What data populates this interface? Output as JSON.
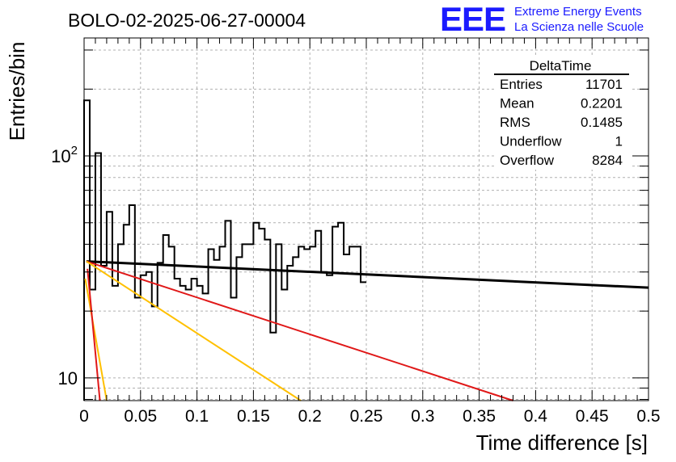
{
  "chart_data": {
    "type": "histogram",
    "title": "BOLO-02-2025-06-27-00004",
    "xlabel": "Time difference [s]",
    "ylabel": "Entries/bin",
    "xlim": [
      0,
      0.5
    ],
    "ylim": [
      7.9,
      340
    ],
    "y_scale": "log",
    "grid": true,
    "x_ticks": [
      "0",
      "0.05",
      "0.1",
      "0.15",
      "0.2",
      "0.25",
      "0.3",
      "0.35",
      "0.4",
      "0.45",
      "0.5"
    ],
    "y_ticks": [
      "10",
      "10^2"
    ],
    "bin_width": 0.005,
    "bin_counts": [
      178,
      25,
      103,
      32,
      56,
      26,
      40,
      49,
      60,
      23,
      29,
      30,
      21,
      33,
      44,
      39,
      28,
      26,
      25,
      28,
      26,
      24,
      38,
      34,
      39,
      51,
      23,
      35,
      40,
      40,
      50,
      47,
      42,
      16,
      40,
      25,
      32,
      35,
      39,
      38,
      39,
      46,
      30,
      29,
      48,
      50,
      36,
      39,
      39,
      27
    ],
    "fit_lines": [
      {
        "color": "#000000",
        "x": [
          0.002,
          0.5
        ],
        "y": [
          33.5,
          25.5
        ]
      },
      {
        "color": "#e01818",
        "x": [
          0.002,
          0.38
        ],
        "y": [
          33.5,
          7.9
        ]
      },
      {
        "color": "#ffc000",
        "x": [
          0.002,
          0.192
        ],
        "y": [
          33.5,
          7.9
        ]
      },
      {
        "color": "#ffc000",
        "x": [
          0.001,
          0.02
        ],
        "y": [
          28,
          7.9
        ]
      },
      {
        "color": "#e01818",
        "x": [
          0.003,
          0.014
        ],
        "y": [
          31,
          7.9
        ]
      }
    ],
    "stats_box": {
      "title": "DeltaTime",
      "rows": [
        {
          "label": "Entries",
          "value": "11701"
        },
        {
          "label": "Mean",
          "value": "0.2201"
        },
        {
          "label": "RMS",
          "value": "0.1485"
        },
        {
          "label": "Underflow",
          "value": "1"
        },
        {
          "label": "Overflow",
          "value": "8284"
        }
      ]
    }
  },
  "logo": {
    "text": "EEE",
    "line1": "Extreme Energy Events",
    "line2": "La Scienza nelle Scuole",
    "color": "#1a1aff"
  }
}
